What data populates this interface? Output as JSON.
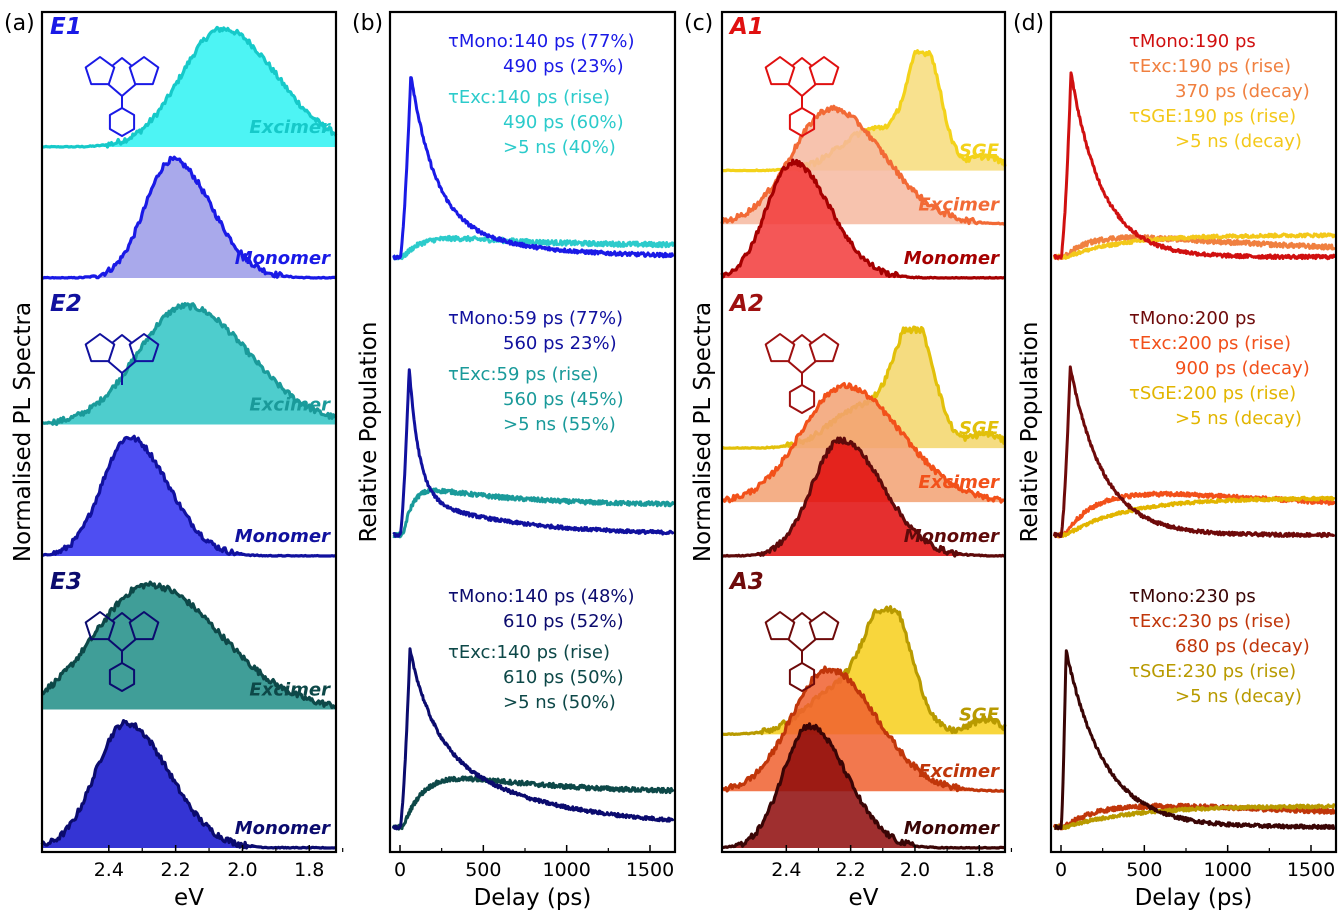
{
  "chart_data": [
    {
      "panel": "(a)",
      "type": "area",
      "xlabel": "eV",
      "ylabel": "Normalised PL Spectra",
      "x_ticks": [
        "2.4",
        "2.2",
        "2.0",
        "1.8"
      ],
      "xlim": [
        2.6,
        1.72
      ],
      "rows": [
        {
          "sample": "E1",
          "sample_color": "#1a1ae6",
          "traces": [
            {
              "name": "Excimer",
              "color": "#16c9c9",
              "fill": "#2ef2f2",
              "center": 2.06,
              "width": 0.13,
              "values_shape": "broad"
            },
            {
              "name": "Monomer",
              "color": "#1a1ae6",
              "fill": "#9a9ae8",
              "center": 2.21,
              "width": 0.09,
              "values_shape": "narrow"
            }
          ]
        },
        {
          "sample": "E2",
          "sample_color": "#11119e",
          "traces": [
            {
              "name": "Excimer",
              "color": "#1a9a9a",
              "fill": "#2fc4c4",
              "center": 2.17,
              "width": 0.15,
              "values_shape": "broad"
            },
            {
              "name": "Monomer",
              "color": "#11119e",
              "fill": "#2f2ff0",
              "center": 2.34,
              "width": 0.09,
              "values_shape": "narrow"
            }
          ]
        },
        {
          "sample": "E3",
          "sample_color": "#0b0b6e",
          "traces": [
            {
              "name": "Excimer",
              "color": "#0d4848",
              "fill": "#1e8d86",
              "center": 2.28,
              "width": 0.17,
              "values_shape": "broad"
            },
            {
              "name": "Monomer",
              "color": "#0b0b6e",
              "fill": "#1111cc",
              "center": 2.35,
              "width": 0.1,
              "values_shape": "narrow"
            }
          ]
        }
      ]
    },
    {
      "panel": "(b)",
      "type": "line",
      "xlabel": "Delay (ps)",
      "ylabel": "Relative Population",
      "x_ticks": [
        "0",
        "500",
        "1000",
        "1500"
      ],
      "xlim": [
        -60,
        1650
      ],
      "rows": [
        {
          "monomer": {
            "color": "#1a1ae6",
            "tau": [
              140,
              490
            ],
            "amp": [
              0.77,
              0.23
            ],
            "peak_ps": 65
          },
          "excimer": {
            "color": "#2ccbcb",
            "rise": 140,
            "tau": 490,
            "amp": [
              0.6,
              0.4
            ]
          },
          "annotations": {
            "mono_lines": [
              "τMono:140 ps (77%)",
              "490 ps (23%)"
            ],
            "exc_lines": [
              "τExc:140 ps (rise)",
              "490 ps (60%)",
              ">5 ns (40%)"
            ]
          }
        },
        {
          "monomer": {
            "color": "#11119e",
            "tau": [
              59,
              560
            ],
            "amp": [
              0.77,
              0.23
            ],
            "peak_ps": 55
          },
          "excimer": {
            "color": "#1a9a9a",
            "rise": 59,
            "tau": 560,
            "amp": [
              0.45,
              0.55
            ]
          },
          "annotations": {
            "mono_lines": [
              "τMono:59 ps (77%)",
              "560 ps 23%)"
            ],
            "exc_lines": [
              "τExc:59 ps (rise)",
              "560 ps (45%)",
              ">5 ns (55%)"
            ]
          }
        },
        {
          "monomer": {
            "color": "#0b0b6e",
            "tau": [
              140,
              610
            ],
            "amp": [
              0.48,
              0.52
            ],
            "peak_ps": 60
          },
          "excimer": {
            "color": "#0d4848",
            "rise": 140,
            "tau": 610,
            "amp": [
              0.5,
              0.5
            ]
          },
          "annotations": {
            "mono_lines": [
              "τMono:140 ps (48%)",
              "610 ps (52%)"
            ],
            "exc_lines": [
              "τExc:140 ps (rise)",
              "610 ps (50%)",
              ">5 ns (50%)"
            ]
          }
        }
      ]
    },
    {
      "panel": "(c)",
      "type": "area",
      "xlabel": "eV",
      "ylabel": "Normalised PL Spectra",
      "x_ticks": [
        "2.4",
        "2.2",
        "2.0",
        "1.8"
      ],
      "xlim": [
        2.6,
        1.72
      ],
      "rows": [
        {
          "sample": "A1",
          "sample_color": "#e01010",
          "traces": [
            {
              "name": "SGE",
              "color": "#f3d21a",
              "fill": "#f7dc7a",
              "center": 1.97,
              "width": 0.05,
              "values_shape": "sge"
            },
            {
              "name": "Excimer",
              "color": "#f26a36",
              "fill": "#f6b8a0",
              "center": 2.26,
              "width": 0.13,
              "values_shape": "broad"
            },
            {
              "name": "Monomer",
              "color": "#a50000",
              "fill": "#f23a3a",
              "center": 2.38,
              "width": 0.09,
              "values_shape": "narrow"
            }
          ]
        },
        {
          "sample": "A2",
          "sample_color": "#9e1010",
          "traces": [
            {
              "name": "SGE",
              "color": "#e2c00a",
              "fill": "#f3d66a",
              "center": 2.0,
              "width": 0.06,
              "values_shape": "sge"
            },
            {
              "name": "Excimer",
              "color": "#f2511a",
              "fill": "#f2a172",
              "center": 2.22,
              "width": 0.14,
              "values_shape": "broad"
            },
            {
              "name": "Monomer",
              "color": "#5e0a0a",
              "fill": "#e00a0a",
              "center": 2.23,
              "width": 0.1,
              "values_shape": "narrow"
            }
          ]
        },
        {
          "sample": "A3",
          "sample_color": "#6e0a0a",
          "traces": [
            {
              "name": "SGE",
              "color": "#b89a00",
              "fill": "#f7cf1a",
              "center": 2.08,
              "width": 0.07,
              "values_shape": "sge"
            },
            {
              "name": "Excimer",
              "color": "#c0360a",
              "fill": "#f0602f",
              "center": 2.27,
              "width": 0.12,
              "values_shape": "broad"
            },
            {
              "name": "Monomer",
              "color": "#3a0505",
              "fill": "#8e0a0a",
              "center": 2.33,
              "width": 0.09,
              "values_shape": "narrow"
            }
          ]
        }
      ]
    },
    {
      "panel": "(d)",
      "type": "line",
      "xlabel": "Delay (ps)",
      "ylabel": "Relative Population",
      "x_ticks": [
        "0",
        "500",
        "1000",
        "1500"
      ],
      "xlim": [
        -60,
        1650
      ],
      "rows": [
        {
          "monomer": {
            "color": "#d01010",
            "tau": [
              190
            ],
            "amp": [
              1.0
            ],
            "peak_ps": 60
          },
          "excimer": {
            "color": "#f08040",
            "rise": 190,
            "tau": 370
          },
          "sge": {
            "color": "#f3c81a",
            "rise": 190
          },
          "annotations": {
            "mono_lines": [
              "τMono:190 ps"
            ],
            "exc_lines": [
              "τExc:190 ps (rise)",
              "370 ps (decay)"
            ],
            "sge_lines": [
              "τSGE:190 ps (rise)",
              ">5 ns (decay)"
            ]
          }
        },
        {
          "monomer": {
            "color": "#6e0a0a",
            "tau": [
              200
            ],
            "amp": [
              1.0
            ],
            "peak_ps": 55
          },
          "excimer": {
            "color": "#f2501a",
            "rise": 200,
            "tau": 900
          },
          "sge": {
            "color": "#e2b500",
            "rise": 200
          },
          "annotations": {
            "mono_lines": [
              "τMono:200 ps"
            ],
            "exc_lines": [
              "τExc:200 ps (rise)",
              "900 ps (decay)"
            ],
            "sge_lines": [
              "τSGE:200 ps (rise)",
              ">5 ns (decay)"
            ]
          }
        },
        {
          "monomer": {
            "color": "#3a0505",
            "tau": [
              230
            ],
            "amp": [
              1.0
            ],
            "peak_ps": 30
          },
          "excimer": {
            "color": "#c0360a",
            "rise": 230,
            "tau": 680
          },
          "sge": {
            "color": "#b89a00",
            "rise": 230
          },
          "annotations": {
            "mono_lines": [
              "τMono:230 ps"
            ],
            "exc_lines": [
              "τExc:230 ps (rise)",
              "680 ps (decay)"
            ],
            "sge_lines": [
              "τSGE:230 ps (rise)",
              ">5 ns (decay)"
            ]
          }
        }
      ]
    }
  ]
}
